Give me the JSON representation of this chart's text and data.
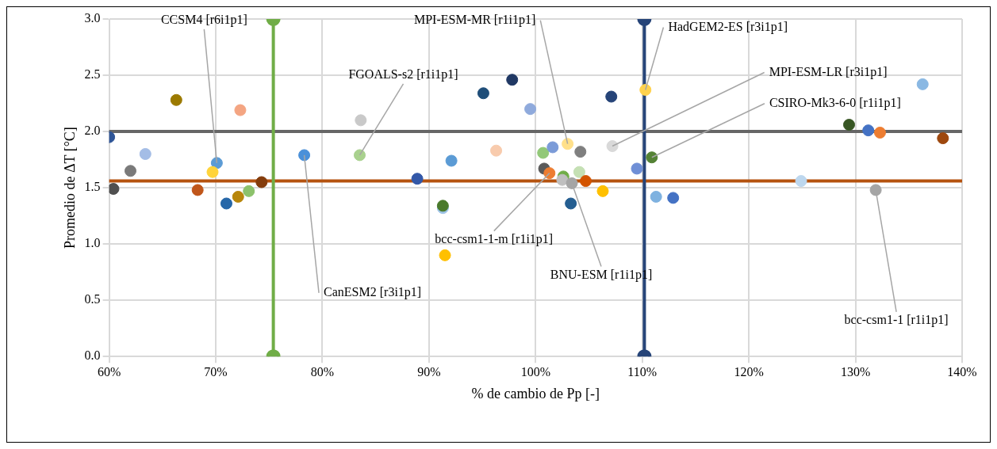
{
  "chart_data": {
    "type": "scatter",
    "xlabel": "% de cambio de Pp [-]",
    "ylabel": "Promedio de ΔT [°C]",
    "xlim": [
      60,
      140
    ],
    "xticks": [
      {
        "value": 60,
        "label": "60%"
      },
      {
        "value": 70,
        "label": "70%"
      },
      {
        "value": 80,
        "label": "80%"
      },
      {
        "value": 90,
        "label": "90%"
      },
      {
        "value": 100,
        "label": "100%"
      },
      {
        "value": 110,
        "label": "110%"
      },
      {
        "value": 120,
        "label": "120%"
      },
      {
        "value": 130,
        "label": "130%"
      },
      {
        "value": 140,
        "label": "140%"
      }
    ],
    "ylim": [
      0,
      3
    ],
    "yticks": [
      {
        "value": 0,
        "label": "0.0"
      },
      0.5,
      {
        "value": 1,
        "label": "1.0"
      },
      1.5,
      {
        "value": 2,
        "label": "2.0"
      },
      2.5,
      {
        "value": 3,
        "label": "3.0"
      }
    ],
    "grid": true,
    "legend": false,
    "marker": "circle",
    "series": [
      {
        "x": [
          60.0,
          60.4,
          62.0,
          63.4,
          66.3,
          72.3,
          70.1,
          69.7,
          68.3,
          71.0,
          72.1,
          73.1,
          74.3,
          78.3,
          83.5,
          83.6,
          88.9,
          91.3,
          91.3,
          92.1,
          95.1,
          97.8,
          99.5,
          96.3,
          100.7,
          101.6,
          103.0,
          104.2,
          100.8,
          101.3,
          102.6,
          102.5,
          103.4,
          104.1,
          104.7,
          106.3,
          103.3,
          107.1,
          107.2,
          110.3,
          109.5,
          110.9,
          111.3,
          112.9,
          124.9,
          129.4,
          131.2,
          132.3,
          131.9,
          136.3,
          138.2,
          91.5
        ],
        "values": [
          1.95,
          1.49,
          1.65,
          1.8,
          2.28,
          2.19,
          1.72,
          1.64,
          1.48,
          1.36,
          1.42,
          1.47,
          1.55,
          1.79,
          1.79,
          2.1,
          1.58,
          1.32,
          1.34,
          1.74,
          2.34,
          2.46,
          2.2,
          1.83,
          1.81,
          1.86,
          1.89,
          1.82,
          1.67,
          1.63,
          1.6,
          1.57,
          1.54,
          1.64,
          1.56,
          1.47,
          1.36,
          2.31,
          1.87,
          2.37,
          1.67,
          1.77,
          1.42,
          1.41,
          1.56,
          2.06,
          2.01,
          1.99,
          1.48,
          2.42,
          1.94,
          0.9
        ],
        "colors": [
          "#2f5597",
          "#505050",
          "#7a7a7a",
          "#a4bde6",
          "#9c7a00",
          "#f4a582",
          "#5b9bd5",
          "#ffd43b",
          "#c0561a",
          "#2667a8",
          "#b8860b",
          "#8cc26b",
          "#843c0c",
          "#4a90d9",
          "#a9d18e",
          "#c9c9c9",
          "#3358a8",
          "#9dc3e6",
          "#4a7a2c",
          "#5b9bd5",
          "#1f4e79",
          "#203864",
          "#8faadc",
          "#f8cbad",
          "#92c878",
          "#7b9bd8",
          "#ffe08a",
          "#7f7f7f",
          "#595959",
          "#ed7d31",
          "#70ad47",
          "#bfbfbf",
          "#a5a5a5",
          "#c5e0b4",
          "#d35400",
          "#ffc000",
          "#255e91",
          "#264478",
          "#d9d9d9",
          "#ffd24d",
          "#6f8fd6",
          "#548235",
          "#7fb2e0",
          "#4472c4",
          "#bdd7ee",
          "#375623",
          "#4472c4",
          "#ed7d31",
          "#a5a5a5",
          "#8ab8e3",
          "#9e480e",
          "#ffc000"
        ]
      },
      {
        "type": "line",
        "x": [
          75.4,
          75.4
        ],
        "values": [
          0,
          3
        ],
        "color": "#70ad47"
      },
      {
        "type": "line",
        "x": [
          110.2,
          110.2
        ],
        "values": [
          0,
          3
        ],
        "color": "#264478"
      }
    ],
    "ref_lines": [
      {
        "axis": "y",
        "value": 2.0,
        "color": "#666666"
      },
      {
        "axis": "y",
        "value": 1.56,
        "color": "#b5530f"
      }
    ],
    "annotations": [
      {
        "text": "CCSM4 [r6i1p1]",
        "x": 70.1,
        "y": 1.72
      },
      {
        "text": "FGOALS-s2 [r1i1p1]",
        "x": 83.5,
        "y": 1.79
      },
      {
        "text": "MPI-ESM-MR [r1i1p1]",
        "x": 103.0,
        "y": 1.89
      },
      {
        "text": "HadGEM2-ES [r3i1p1]",
        "x": 110.3,
        "y": 2.37
      },
      {
        "text": "MPI-ESM-LR [r3i1p1]",
        "x": 107.2,
        "y": 1.87
      },
      {
        "text": "CSIRO-Mk3-6-0 [r1i1p1]",
        "x": 110.9,
        "y": 1.77
      },
      {
        "text": "bcc-csm1-1-m [r1i1p1]",
        "x": 101.3,
        "y": 1.63
      },
      {
        "text": "BNU-ESM [r1i1p1]",
        "x": 103.4,
        "y": 1.54
      },
      {
        "text": "CanESM2 [r3i1p1]",
        "x": 78.3,
        "y": 1.79
      },
      {
        "text": "bcc-csm1-1 [r1i1p1]",
        "x": 131.9,
        "y": 1.48
      }
    ]
  }
}
